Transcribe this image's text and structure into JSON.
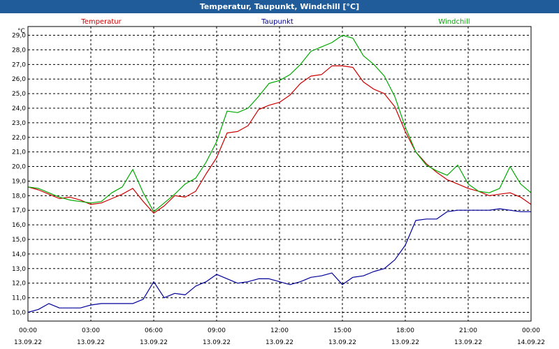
{
  "window": {
    "title": "Temperatur, Taupunkt, Windchill [°C]"
  },
  "chart_data": {
    "type": "line",
    "title": "Temperatur, Taupunkt, Windchill [°C]",
    "ylabel": "°C",
    "ylim": [
      9.4,
      29.6
    ],
    "y_ticks": [
      "10,0",
      "11,0",
      "12,0",
      "13,0",
      "14,0",
      "15,0",
      "16,0",
      "17,0",
      "18,0",
      "19,0",
      "20,0",
      "21,0",
      "22,0",
      "23,0",
      "24,0",
      "25,0",
      "26,0",
      "27,0",
      "28,0",
      "29,0"
    ],
    "x_ticks": [
      {
        "time": "00:00",
        "date": "13.09.22"
      },
      {
        "time": "03:00",
        "date": "13.09.22"
      },
      {
        "time": "06:00",
        "date": "13.09.22"
      },
      {
        "time": "09:00",
        "date": "13.09.22"
      },
      {
        "time": "12:00",
        "date": "13.09.22"
      },
      {
        "time": "15:00",
        "date": "13.09.22"
      },
      {
        "time": "18:00",
        "date": "13.09.22"
      },
      {
        "time": "21:00",
        "date": "13.09.22"
      },
      {
        "time": "00:00",
        "date": "14.09.22"
      }
    ],
    "grid": true,
    "x_hours": [
      0,
      0.5,
      1,
      1.5,
      2,
      2.5,
      3,
      3.5,
      4,
      4.5,
      5,
      5.5,
      6,
      6.5,
      7,
      7.5,
      8,
      8.5,
      9,
      9.5,
      10,
      10.5,
      11,
      11.5,
      12,
      12.5,
      13,
      13.5,
      14,
      14.5,
      15,
      15.5,
      16,
      16.5,
      17,
      17.5,
      18,
      18.5,
      19,
      19.5,
      20,
      20.5,
      21,
      21.5,
      22,
      22.5,
      23,
      23.5,
      24
    ],
    "series": [
      {
        "name": "Temperatur",
        "color": "#cc0000",
        "values": [
          18.6,
          18.4,
          18.1,
          17.8,
          17.9,
          17.7,
          17.4,
          17.5,
          17.8,
          18.1,
          18.5,
          17.6,
          16.8,
          17.3,
          18.0,
          17.9,
          18.3,
          19.5,
          20.6,
          22.3,
          22.4,
          22.8,
          23.9,
          24.2,
          24.4,
          24.9,
          25.7,
          26.2,
          26.3,
          26.9,
          26.9,
          26.8,
          25.8,
          25.3,
          25.0,
          24.1,
          22.4,
          21.0,
          20.2,
          19.6,
          19.1,
          18.8,
          18.5,
          18.3,
          18.0,
          18.1,
          18.2,
          17.9,
          17.4
        ]
      },
      {
        "name": "Taupunkt",
        "color": "#000099",
        "values": [
          10.0,
          10.2,
          10.6,
          10.3,
          10.3,
          10.3,
          10.5,
          10.6,
          10.6,
          10.6,
          10.6,
          10.9,
          12.1,
          11.0,
          11.3,
          11.2,
          11.8,
          12.1,
          12.6,
          12.3,
          12.0,
          12.1,
          12.3,
          12.3,
          12.1,
          11.9,
          12.1,
          12.4,
          12.5,
          12.7,
          11.9,
          12.4,
          12.5,
          12.8,
          13.0,
          13.6,
          14.6,
          16.3,
          16.4,
          16.4,
          16.9,
          17.0,
          17.0,
          17.0,
          17.0,
          17.1,
          17.0,
          16.9,
          16.9
        ]
      },
      {
        "name": "Windchill",
        "color": "#00aa00",
        "values": [
          18.6,
          18.5,
          18.2,
          17.9,
          17.7,
          17.6,
          17.5,
          17.6,
          18.2,
          18.6,
          19.8,
          18.2,
          16.9,
          17.5,
          18.1,
          18.8,
          19.2,
          20.3,
          21.7,
          23.8,
          23.7,
          24.0,
          24.8,
          25.7,
          25.9,
          26.3,
          27.0,
          27.9,
          28.2,
          28.5,
          29.0,
          28.8,
          27.6,
          27.0,
          26.2,
          24.8,
          22.7,
          21.0,
          20.1,
          19.7,
          19.4,
          20.1,
          18.8,
          18.3,
          18.2,
          18.5,
          20.0,
          18.8,
          18.2
        ]
      }
    ]
  }
}
